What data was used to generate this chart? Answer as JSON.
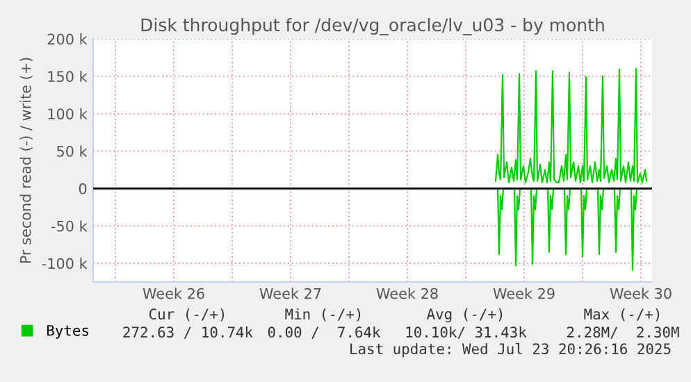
{
  "chart_data": {
    "type": "line",
    "title": "Disk throughput for /dev/vg_oracle/lv_u03 - by month",
    "ylabel": "Pr second read (-) / write (+)",
    "xlim": [
      "2025-06-20T16:00",
      "2025-07-24T04:00"
    ],
    "ylim": [
      -125000,
      200000
    ],
    "xticks": [
      {
        "value": "2025-06-22",
        "label": null
      },
      {
        "value": "2025-06-25T12:00",
        "label": "Week 26"
      },
      {
        "value": "2025-06-29",
        "label": null
      },
      {
        "value": "2025-07-02T12:00",
        "label": "Week 27"
      },
      {
        "value": "2025-07-06",
        "label": null
      },
      {
        "value": "2025-07-09T12:00",
        "label": "Week 28"
      },
      {
        "value": "2025-07-13",
        "label": null
      },
      {
        "value": "2025-07-16T12:00",
        "label": "Week 29"
      },
      {
        "value": "2025-07-20",
        "label": null
      },
      {
        "value": "2025-07-23T12:00",
        "label": "Week 30"
      }
    ],
    "yticks": [
      {
        "value": -100000,
        "label": "-100 k"
      },
      {
        "value": -50000,
        "label": "-50 k"
      },
      0,
      {
        "value": 50000,
        "label": "50 k"
      },
      {
        "value": 100000,
        "label": "100 k"
      },
      {
        "value": 150000,
        "label": "150 k"
      },
      {
        "value": 200000,
        "label": "200 k"
      }
    ],
    "grid": true,
    "legend": "bottom",
    "ref_lines": [
      {
        "axis": "y",
        "value": 0,
        "label": null,
        "color": "#000000"
      }
    ],
    "series": [
      {
        "name": "Bytes",
        "color": "#00cc00",
        "x": [
          "2025-07-14T19:00",
          "2025-07-14T22:00",
          "2025-07-15T00:00",
          "2025-07-15T02:00",
          "2025-07-15T05:00",
          "2025-07-15T07:00",
          "2025-07-15T11:00",
          "2025-07-15T14:00",
          "2025-07-15T18:00",
          "2025-07-15T21:00",
          "2025-07-16T00:00",
          "2025-07-16T02:00",
          "2025-07-16T05:00",
          "2025-07-16T07:00",
          "2025-07-16T11:00",
          "2025-07-16T14:00",
          "2025-07-16T18:00",
          "2025-07-16T21:00",
          "2025-07-17T00:00",
          "2025-07-17T02:00",
          "2025-07-17T05:00",
          "2025-07-17T07:00",
          "2025-07-17T11:00",
          "2025-07-17T14:00",
          "2025-07-17T18:00",
          "2025-07-17T21:00",
          "2025-07-18T00:00",
          "2025-07-18T02:00",
          "2025-07-18T05:00",
          "2025-07-18T07:00",
          "2025-07-18T11:00",
          "2025-07-18T14:00",
          "2025-07-18T18:00",
          "2025-07-18T21:00",
          "2025-07-19T00:00",
          "2025-07-19T02:00",
          "2025-07-19T05:00",
          "2025-07-19T07:00",
          "2025-07-19T11:00",
          "2025-07-19T14:00",
          "2025-07-19T18:00",
          "2025-07-19T21:00",
          "2025-07-20T00:00",
          "2025-07-20T02:00",
          "2025-07-20T05:00",
          "2025-07-20T07:00",
          "2025-07-20T11:00",
          "2025-07-20T14:00",
          "2025-07-20T18:00",
          "2025-07-20T21:00",
          "2025-07-21T00:00",
          "2025-07-21T02:00",
          "2025-07-21T05:00",
          "2025-07-21T07:00",
          "2025-07-21T11:00",
          "2025-07-21T14:00",
          "2025-07-21T18:00",
          "2025-07-21T21:00",
          "2025-07-22T00:00",
          "2025-07-22T02:00",
          "2025-07-22T05:00",
          "2025-07-22T07:00",
          "2025-07-22T11:00",
          "2025-07-22T14:00",
          "2025-07-22T18:00",
          "2025-07-22T21:00",
          "2025-07-23T00:00",
          "2025-07-23T02:00",
          "2025-07-23T05:00",
          "2025-07-23T07:00",
          "2025-07-23T11:00",
          "2025-07-23T14:00",
          "2025-07-23T18:00",
          "2025-07-23T20:00"
        ],
        "values": [
          10000,
          45000,
          20000,
          12000,
          152000,
          15000,
          35000,
          8000,
          28000,
          10000,
          38000,
          12000,
          153000,
          12000,
          30000,
          8000,
          22000,
          40000,
          15000,
          10000,
          157000,
          10000,
          32000,
          8000,
          25000,
          8000,
          35000,
          10000,
          157000,
          12000,
          8000,
          8000,
          30000,
          10000,
          45000,
          12000,
          155000,
          15000,
          35000,
          10000,
          30000,
          8000,
          30000,
          10000,
          149000,
          12000,
          30000,
          8000,
          35000,
          10000,
          25000,
          10000,
          150000,
          14000,
          30000,
          8000,
          25000,
          10000,
          40000,
          12000,
          159000,
          10000,
          30000,
          8000,
          35000,
          10000,
          30000,
          10000,
          160000,
          8000,
          20000,
          8000,
          25000,
          10000
        ]
      },
      {
        "color": "#00cc00",
        "x": [
          "2025-07-14T22:00",
          "2025-07-15T00:00",
          "2025-07-15T02:00",
          "2025-07-15T04:00",
          "2025-07-15T06:00",
          "2025-07-15T22:00",
          "2025-07-16T00:00",
          "2025-07-16T02:00",
          "2025-07-16T04:00",
          "2025-07-16T06:00",
          "2025-07-16T22:00",
          "2025-07-17T00:00",
          "2025-07-17T02:00",
          "2025-07-17T04:00",
          "2025-07-17T06:00",
          "2025-07-17T22:00",
          "2025-07-18T00:00",
          "2025-07-18T02:00",
          "2025-07-18T04:00",
          "2025-07-18T06:00",
          "2025-07-18T22:00",
          "2025-07-19T00:00",
          "2025-07-19T02:00",
          "2025-07-19T04:00",
          "2025-07-19T06:00",
          "2025-07-19T22:00",
          "2025-07-20T00:00",
          "2025-07-20T02:00",
          "2025-07-20T04:00",
          "2025-07-20T06:00",
          "2025-07-20T22:00",
          "2025-07-21T00:00",
          "2025-07-21T02:00",
          "2025-07-21T04:00",
          "2025-07-21T06:00",
          "2025-07-21T22:00",
          "2025-07-22T00:00",
          "2025-07-22T02:00",
          "2025-07-22T04:00",
          "2025-07-22T06:00",
          "2025-07-22T22:00",
          "2025-07-23T00:00",
          "2025-07-23T02:00",
          "2025-07-23T04:00",
          "2025-07-23T06:00",
          "2025-07-23T20:00"
        ],
        "values": [
          0,
          -88000,
          -10000,
          -28000,
          0,
          0,
          -103000,
          -10000,
          -28000,
          0,
          0,
          -101000,
          -10000,
          -28000,
          0,
          0,
          -85000,
          -10000,
          -28000,
          0,
          0,
          -88000,
          -10000,
          -28000,
          0,
          0,
          -91000,
          -10000,
          -28000,
          0,
          0,
          -88000,
          -10000,
          -28000,
          0,
          0,
          -85000,
          -10000,
          -28000,
          0,
          0,
          -109000,
          -10000,
          -28000,
          0,
          0
        ]
      }
    ],
    "annotations": [
      "Cur (-/+)",
      "Min (-/+)",
      "Avg (-/+)",
      "Max (-/+)",
      "272.63 / 10.74k",
      "0.00 /  7.64k",
      "10.10k/ 31.43k",
      "2.28M/  2.30M",
      "Last update: Wed Jul 23 20:26:16 2025"
    ]
  }
}
